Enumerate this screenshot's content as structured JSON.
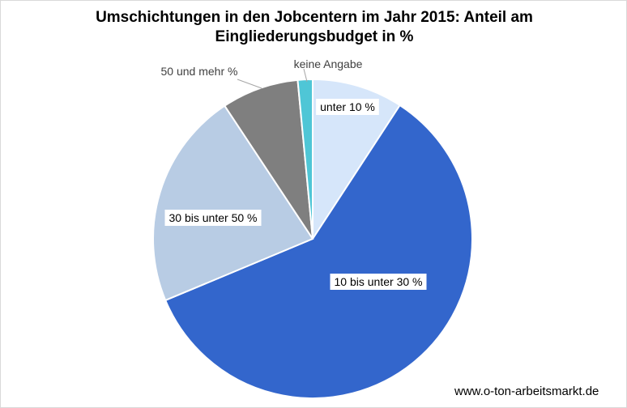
{
  "chart_data": {
    "type": "pie",
    "title_lines": [
      "Umschichtungen in den Jobcentern im Jahr 2015: Anteil am",
      "Eingliederungsbudget in %"
    ],
    "slices": [
      {
        "label": "unter 10 %",
        "value": 9.2,
        "color": "#d6e6fa"
      },
      {
        "label": "10 bis unter 30 %",
        "value": 59.5,
        "color": "#3366cc"
      },
      {
        "label": "30 bis unter 50 %",
        "value": 22.0,
        "color": "#b8cce4"
      },
      {
        "label": "50 und mehr %",
        "value": 7.8,
        "color": "#7f7f7f"
      },
      {
        "label": "keine Angabe",
        "value": 1.5,
        "color": "#4fc6d6"
      }
    ],
    "legend": "none",
    "data_labels": "inside-or-callout"
  },
  "footer": {
    "source": "www.o-ton-arbeitsmarkt.de"
  }
}
